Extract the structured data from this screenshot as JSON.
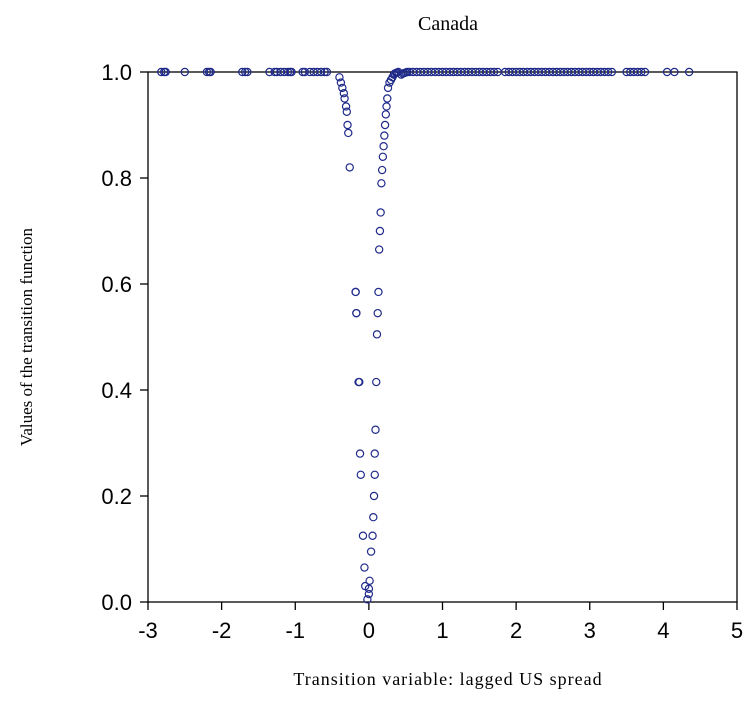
{
  "chart_data": {
    "type": "scatter",
    "title": "Canada",
    "xlabel": "Transition variable: lagged US spread",
    "ylabel": "Values of the transition function",
    "xlim": [
      -3,
      5
    ],
    "ylim": [
      0,
      1
    ],
    "xticks": [
      -3,
      -2,
      -1,
      0,
      1,
      2,
      3,
      4,
      5
    ],
    "yticks": [
      0.0,
      0.2,
      0.4,
      0.6,
      0.8,
      1.0
    ],
    "xtick_labels": [
      "-3",
      "-2",
      "-1",
      "0",
      "1",
      "2",
      "3",
      "4",
      "5"
    ],
    "ytick_labels": [
      "0.0",
      "0.2",
      "0.4",
      "0.6",
      "0.8",
      "1.0"
    ],
    "grid": false,
    "marker_color": "#1f2a8a",
    "series": [
      {
        "x": [
          -2.82,
          -2.78,
          -2.76,
          -2.5,
          -2.2,
          -2.17,
          -2.15,
          -1.72,
          -1.68,
          -1.65,
          -1.35,
          -1.28,
          -1.25,
          -1.2,
          -1.15,
          -1.1,
          -1.07,
          -1.05,
          -0.9,
          -0.87,
          -0.8,
          -0.75,
          -0.7,
          -0.65,
          -0.6,
          -0.57,
          0.44,
          0.46,
          0.48,
          0.5,
          0.52,
          0.55,
          0.6,
          0.65,
          0.7,
          0.75,
          0.8,
          0.85,
          0.9,
          0.95,
          1.0,
          1.05,
          1.1,
          1.15,
          1.2,
          1.25,
          1.3,
          1.35,
          1.4,
          1.45,
          1.5,
          1.55,
          1.6,
          1.65,
          1.7,
          1.75,
          1.85,
          1.9,
          1.95,
          2.0,
          2.05,
          2.1,
          2.15,
          2.2,
          2.25,
          2.3,
          2.35,
          2.4,
          2.45,
          2.5,
          2.55,
          2.6,
          2.65,
          2.7,
          2.75,
          2.8,
          2.85,
          2.9,
          2.95,
          3.0,
          3.05,
          3.1,
          3.15,
          3.2,
          3.25,
          3.3,
          3.5,
          3.55,
          3.6,
          3.65,
          3.7,
          3.75,
          4.05,
          4.15,
          4.35,
          -0.4,
          -0.38,
          -0.36,
          -0.34,
          -0.33,
          -0.31,
          -0.3,
          -0.29,
          -0.28,
          -0.26,
          -0.18,
          -0.17,
          -0.18,
          -0.17,
          -0.14,
          -0.13,
          -0.12,
          -0.11,
          -0.08,
          -0.06,
          -0.05,
          -0.02,
          0.0,
          0.01,
          0.0,
          0.03,
          0.05,
          0.06,
          0.07,
          0.08,
          0.08,
          0.09,
          0.1,
          0.11,
          0.12,
          0.13,
          0.14,
          0.15,
          0.16,
          0.17,
          0.18,
          0.19,
          0.2,
          0.21,
          0.22,
          0.23,
          0.24,
          0.25,
          0.26,
          0.28,
          0.3,
          0.32,
          0.34,
          0.35,
          0.37,
          0.38,
          0.4
        ],
        "y": [
          1.0,
          1.0,
          1.0,
          1.0,
          1.0,
          1.0,
          1.0,
          1.0,
          1.0,
          1.0,
          1.0,
          1.0,
          1.0,
          1.0,
          1.0,
          1.0,
          1.0,
          1.0,
          1.0,
          1.0,
          1.0,
          1.0,
          1.0,
          1.0,
          1.0,
          1.0,
          0.995,
          0.997,
          0.998,
          0.999,
          1.0,
          1.0,
          1.0,
          1.0,
          1.0,
          1.0,
          1.0,
          1.0,
          1.0,
          1.0,
          1.0,
          1.0,
          1.0,
          1.0,
          1.0,
          1.0,
          1.0,
          1.0,
          1.0,
          1.0,
          1.0,
          1.0,
          1.0,
          1.0,
          1.0,
          1.0,
          1.0,
          1.0,
          1.0,
          1.0,
          1.0,
          1.0,
          1.0,
          1.0,
          1.0,
          1.0,
          1.0,
          1.0,
          1.0,
          1.0,
          1.0,
          1.0,
          1.0,
          1.0,
          1.0,
          1.0,
          1.0,
          1.0,
          1.0,
          1.0,
          1.0,
          1.0,
          1.0,
          1.0,
          1.0,
          1.0,
          1.0,
          1.0,
          1.0,
          1.0,
          1.0,
          1.0,
          1.0,
          1.0,
          1.0,
          0.99,
          0.98,
          0.97,
          0.96,
          0.95,
          0.935,
          0.925,
          0.9,
          0.885,
          0.82,
          0.585,
          0.545,
          0.585,
          0.545,
          0.415,
          0.415,
          0.28,
          0.24,
          0.125,
          0.065,
          0.03,
          0.005,
          0.015,
          0.04,
          0.025,
          0.095,
          0.125,
          0.16,
          0.2,
          0.24,
          0.28,
          0.325,
          0.415,
          0.505,
          0.545,
          0.585,
          0.665,
          0.7,
          0.735,
          0.79,
          0.815,
          0.84,
          0.86,
          0.88,
          0.9,
          0.92,
          0.935,
          0.95,
          0.97,
          0.98,
          0.985,
          0.99,
          0.995,
          0.997,
          0.998,
          0.999,
          1.0
        ]
      }
    ]
  }
}
